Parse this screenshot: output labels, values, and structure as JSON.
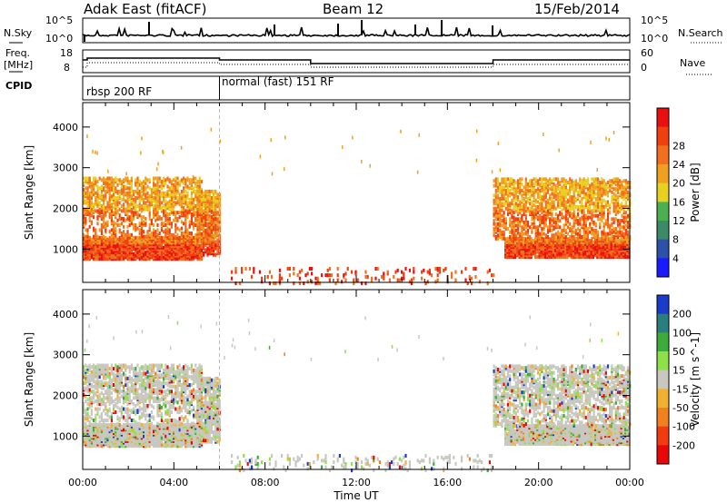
{
  "header": {
    "station": "Adak East (fitACF)",
    "beam": "Beam 12",
    "date": "15/Feb/2014"
  },
  "noise_panel": {
    "left_label": "N.Sky",
    "right_label": "N.Search",
    "tick_top": "10^5",
    "tick_bottom": "10^0"
  },
  "freq_panel": {
    "left_label_1": "Freq.",
    "left_label_2": "[MHz]",
    "right_label": "Nave",
    "left_ticks": [
      "18",
      "8"
    ],
    "right_ticks": [
      "60",
      "0"
    ]
  },
  "cpid_panel": {
    "label": "CPID",
    "modes": [
      "rbsp 200 RF",
      "normal (fast) 151 RF"
    ]
  },
  "chart_data": [
    {
      "type": "heatmap",
      "name": "power",
      "ylabel": "Slant Range [km]",
      "y_ticks": [
        "1000",
        "2000",
        "3000",
        "4000"
      ],
      "colorbar_label": "Power [dB]",
      "colorbar_ticks": [
        "4",
        "8",
        "12",
        "16",
        "20",
        "24",
        "28"
      ],
      "colors": [
        "#1a1aff",
        "#2d50a8",
        "#3c8a66",
        "#4caf50",
        "#e8d020",
        "#f0a020",
        "#f07020",
        "#f04010",
        "#e81010"
      ]
    },
    {
      "type": "heatmap",
      "name": "velocity",
      "ylabel": "Slant Range [km]",
      "y_ticks": [
        "1000",
        "2000",
        "3000",
        "4000"
      ],
      "colorbar_label": "Velocity [m s^-1]",
      "colorbar_ticks": [
        "200",
        "100",
        "50",
        "15",
        "-15",
        "-50",
        "-100",
        "-200"
      ],
      "colors": [
        "#1a3cc8",
        "#2a7e7e",
        "#3cab3c",
        "#8ee04a",
        "#c8c8c0",
        "#f0b030",
        "#f08020",
        "#f03c10",
        "#e80808"
      ]
    }
  ],
  "x_axis": {
    "label": "Time UT",
    "ticks": [
      "00:00",
      "04:00",
      "08:00",
      "12:00",
      "16:00",
      "20:00",
      "00:00"
    ]
  }
}
